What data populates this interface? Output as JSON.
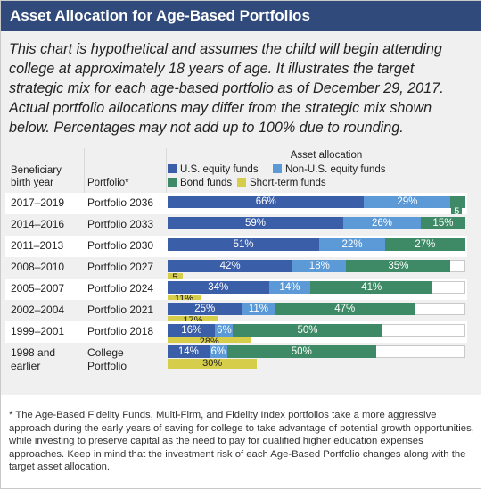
{
  "header": {
    "title": "Asset Allocation for Age-Based Portfolios"
  },
  "intro": "This chart is hypothetical and assumes the child will begin attending college at approximately 18 years of age. It illustrates the target strategic mix for each age-based portfolio as of December 29, 2017. Actual portfolio allocations may differ from the strategic mix shown below. Percentages may not add up to 100% due to rounding.",
  "table_headers": {
    "birth_year": "Beneficiary birth year",
    "portfolio": "Portfolio*",
    "allocation": "Asset allocation"
  },
  "colors": {
    "us_equity": "#3a5ea8",
    "non_us_equity": "#5b9ad6",
    "bond": "#3f8a66",
    "short_term": "#d6cd4a",
    "header_bg": "#2f4a7b"
  },
  "chart_data": {
    "type": "bar",
    "stacked": true,
    "orientation": "horizontal",
    "xlim": [
      0,
      100
    ],
    "title": "Asset allocation",
    "categories": [
      "Portfolio 2036",
      "Portfolio 2033",
      "Portfolio 2030",
      "Portfolio 2027",
      "Portfolio 2024",
      "Portfolio 2021",
      "Portfolio 2018",
      "College Portfolio"
    ],
    "birth_years": [
      "2017–2019",
      "2014–2016",
      "2011–2013",
      "2008–2010",
      "2005–2007",
      "2002–2004",
      "1999–2001",
      "1998 and earlier"
    ],
    "series": [
      {
        "name": "U.S. equity funds",
        "key": "us_equity",
        "values": [
          66,
          59,
          51,
          42,
          34,
          25,
          16,
          14
        ]
      },
      {
        "name": "Non-U.S. equity funds",
        "key": "non_us_equity",
        "values": [
          29,
          26,
          22,
          18,
          14,
          11,
          6,
          6
        ]
      },
      {
        "name": "Bond funds",
        "key": "bond",
        "values": [
          5,
          15,
          27,
          35,
          41,
          47,
          50,
          50
        ]
      },
      {
        "name": "Short-term funds",
        "key": "short_term",
        "values": [
          0,
          0,
          0,
          5,
          11,
          17,
          28,
          30
        ]
      }
    ],
    "data_labels": [
      [
        "66%",
        "29%",
        "5",
        ""
      ],
      [
        "59%",
        "26%",
        "15%",
        ""
      ],
      [
        "51%",
        "22%",
        "27%",
        ""
      ],
      [
        "42%",
        "18%",
        "35%",
        "5"
      ],
      [
        "34%",
        "14%",
        "41%",
        "11%"
      ],
      [
        "25%",
        "11%",
        "47%",
        "17%"
      ],
      [
        "16%",
        "6%",
        "50%",
        "28%"
      ],
      [
        "14%",
        "6%",
        "50%",
        "30%"
      ]
    ],
    "legend_placement": "top"
  },
  "footnote": "* The Age-Based Fidelity Funds, Multi-Firm, and Fidelity Index portfolios take a more aggressive approach during the early years of saving for college to take advantage of potential growth opportunities, while investing to preserve capital as the need to pay for qualified higher education expenses approaches. Keep in mind that the investment risk of each Age-Based Portfolio changes along with the target asset allocation."
}
